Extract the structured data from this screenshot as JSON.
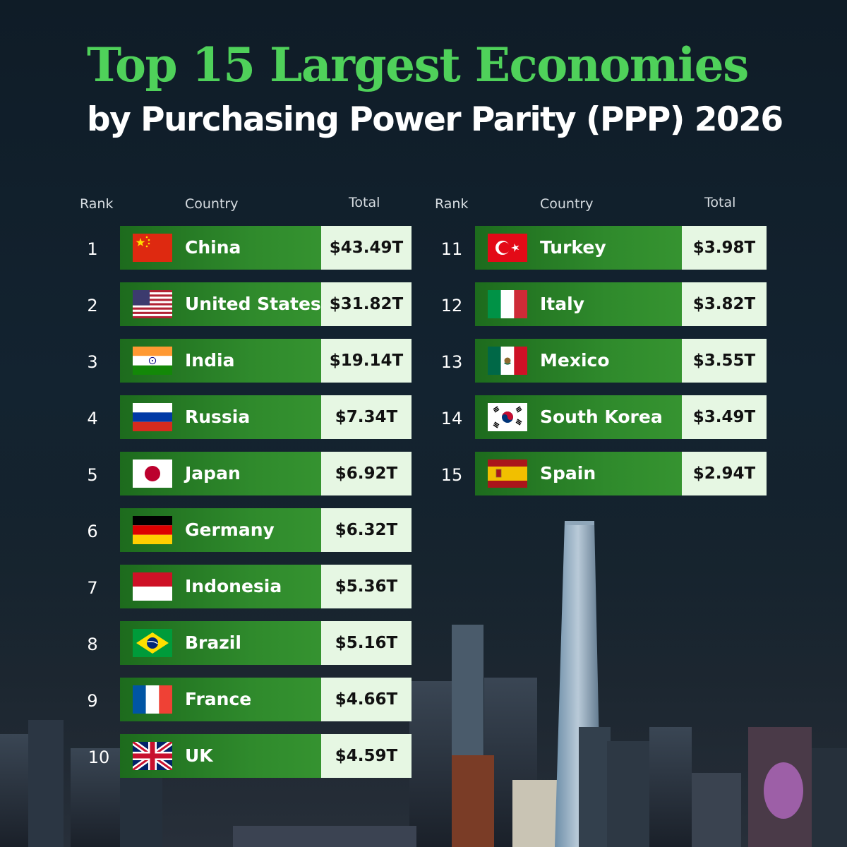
{
  "title": "Top 15 Largest Economies",
  "subtitle": "by Purchasing Power Parity (PPP) 2026",
  "headers": {
    "rank": "Rank",
    "country": "Country",
    "total": "Total"
  },
  "colors": {
    "title_green": "#4fd15a",
    "bar_green": "#2f8a2c",
    "total_bg": "#e6f7e3"
  },
  "rows": [
    {
      "rank": "1",
      "country": "China",
      "total": "$43.49T",
      "flag": "china-flag-icon"
    },
    {
      "rank": "2",
      "country": "United States",
      "total": "$31.82T",
      "flag": "usa-flag-icon"
    },
    {
      "rank": "3",
      "country": "India",
      "total": "$19.14T",
      "flag": "india-flag-icon"
    },
    {
      "rank": "4",
      "country": "Russia",
      "total": "$7.34T",
      "flag": "russia-flag-icon"
    },
    {
      "rank": "5",
      "country": "Japan",
      "total": "$6.92T",
      "flag": "japan-flag-icon"
    },
    {
      "rank": "6",
      "country": "Germany",
      "total": "$6.32T",
      "flag": "germany-flag-icon"
    },
    {
      "rank": "7",
      "country": "Indonesia",
      "total": "$5.36T",
      "flag": "indonesia-flag-icon"
    },
    {
      "rank": "8",
      "country": "Brazil",
      "total": "$5.16T",
      "flag": "brazil-flag-icon"
    },
    {
      "rank": "9",
      "country": "France",
      "total": "$4.66T",
      "flag": "france-flag-icon"
    },
    {
      "rank": "10",
      "country": "UK",
      "total": "$4.59T",
      "flag": "uk-flag-icon"
    },
    {
      "rank": "11",
      "country": "Turkey",
      "total": "$3.98T",
      "flag": "turkey-flag-icon"
    },
    {
      "rank": "12",
      "country": "Italy",
      "total": "$3.82T",
      "flag": "italy-flag-icon"
    },
    {
      "rank": "13",
      "country": "Mexico",
      "total": "$3.55T",
      "flag": "mexico-flag-icon"
    },
    {
      "rank": "14",
      "country": "South Korea",
      "total": "$3.49T",
      "flag": "south-korea-flag-icon"
    },
    {
      "rank": "15",
      "country": "Spain",
      "total": "$2.94T",
      "flag": "spain-flag-icon"
    }
  ]
}
